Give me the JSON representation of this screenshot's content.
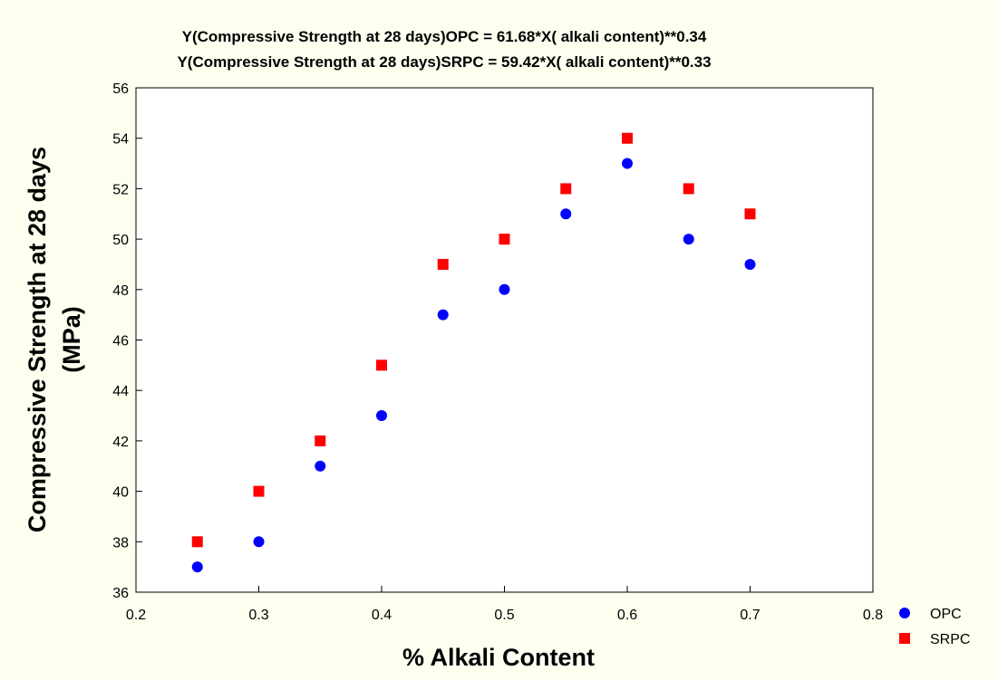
{
  "chart_data": {
    "type": "scatter",
    "title_lines": [
      "Y(Compressive Strength at 28 days)OPC = 61.68*X( alkali content)**0.34",
      "Y(Compressive Strength at 28 days)SRPC = 59.42*X( alkali content)**0.33"
    ],
    "xlabel": "% Alkali Content",
    "ylabel_lines": [
      "Compressive Strength at 28 days",
      "(MPa)"
    ],
    "xlim": [
      0.2,
      0.8
    ],
    "ylim": [
      36,
      56
    ],
    "xticks": [
      "0.2",
      "0.3",
      "0.4",
      "0.5",
      "0.6",
      "0.7",
      "0.8"
    ],
    "yticks": [
      "36",
      "38",
      "40",
      "42",
      "44",
      "46",
      "48",
      "50",
      "52",
      "54",
      "56"
    ],
    "grid": false,
    "legend_position": "bottom-right",
    "series": [
      {
        "name": "OPC",
        "marker": "circle",
        "color": "#0000ff",
        "x": [
          0.25,
          0.3,
          0.35,
          0.4,
          0.45,
          0.5,
          0.55,
          0.6,
          0.65,
          0.7
        ],
        "y": [
          37,
          38,
          41,
          43,
          47,
          48,
          51,
          53,
          50,
          49
        ]
      },
      {
        "name": "SRPC",
        "marker": "square",
        "color": "#ff0000",
        "x": [
          0.25,
          0.3,
          0.35,
          0.4,
          0.45,
          0.5,
          0.55,
          0.6,
          0.65,
          0.7
        ],
        "y": [
          38,
          40,
          42,
          45,
          49,
          50,
          52,
          54,
          52,
          51
        ]
      }
    ]
  }
}
